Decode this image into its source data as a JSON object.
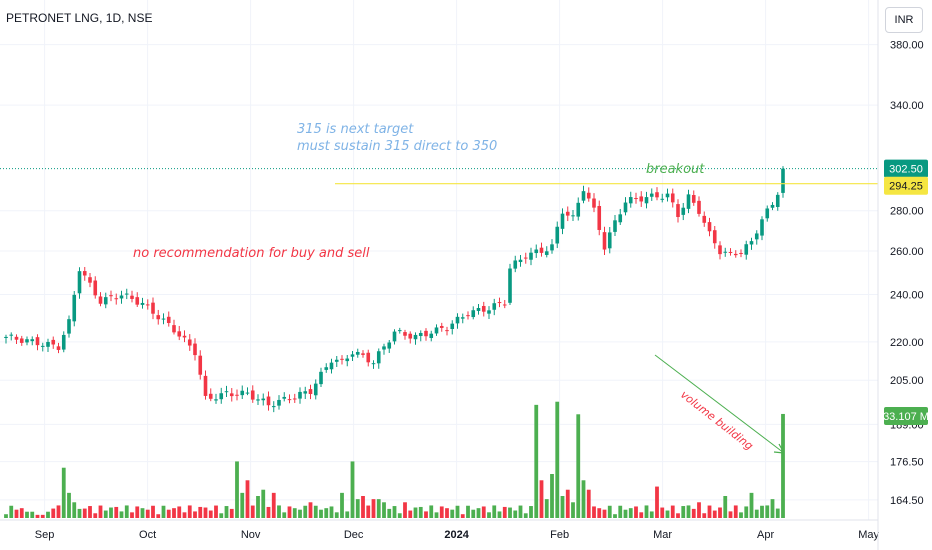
{
  "header": {
    "title": "PETRONET LNG, 1D, NSE",
    "currency": "INR"
  },
  "annotations": {
    "target_line1": "315 is next target",
    "target_line2": "must sustain 315 direct to 350",
    "recommendation": "no recommendation for buy and sell",
    "breakout": "breakout",
    "volume": "volume building"
  },
  "colors": {
    "up": "#089981",
    "down": "#f23645",
    "vol_up": "#4caf50",
    "vol_down": "#f23645",
    "last_price": "#089981",
    "resistance": "#f5e642",
    "arrow": "#4caf50"
  },
  "chart_data": {
    "type": "candlestick",
    "title": "PETRONET LNG, 1D, NSE",
    "y_axis": {
      "scale": "log",
      "range": [
        160,
        405
      ],
      "ticks": [
        "380.00",
        "340.00",
        "280.00",
        "260.00",
        "240.00",
        "220.00",
        "205.00",
        "189.00",
        "176.50",
        "164.50"
      ],
      "tick_values": [
        380,
        340,
        280,
        260,
        240,
        220,
        205,
        189,
        176.5,
        164.5
      ]
    },
    "x_axis": {
      "labels": [
        "Sep",
        "Oct",
        "Nov",
        "Dec",
        "2024",
        "Feb",
        "Mar",
        "Apr",
        "May"
      ],
      "label_month_index": [
        0.2,
        1.2,
        2.2,
        3.2,
        4.2,
        5.2,
        6.2,
        7.2,
        8.2
      ]
    },
    "price_levels": {
      "last": 302.5,
      "last_label": "302.50",
      "resistance": 294.25,
      "resistance_label": "294.25"
    },
    "volume": {
      "last_label": "33.107 M",
      "max_m": 42
    },
    "anchors": [
      [
        0,
        222
      ],
      [
        10,
        218
      ],
      [
        12,
        228
      ],
      [
        14,
        252
      ],
      [
        16,
        244
      ],
      [
        18,
        237
      ],
      [
        22,
        240
      ],
      [
        26,
        236
      ],
      [
        32,
        225
      ],
      [
        36,
        216
      ],
      [
        38,
        198
      ],
      [
        42,
        200
      ],
      [
        46,
        200
      ],
      [
        50,
        196
      ],
      [
        55,
        199
      ],
      [
        58,
        201
      ],
      [
        62,
        213
      ],
      [
        64,
        212
      ],
      [
        66,
        216
      ],
      [
        70,
        212
      ],
      [
        74,
        224
      ],
      [
        78,
        222
      ],
      [
        84,
        226
      ],
      [
        88,
        232
      ],
      [
        92,
        234
      ],
      [
        95,
        237
      ],
      [
        96,
        252
      ],
      [
        99,
        258
      ],
      [
        102,
        260
      ],
      [
        104,
        262
      ],
      [
        106,
        280
      ],
      [
        108,
        276
      ],
      [
        110,
        292
      ],
      [
        112,
        280
      ],
      [
        114,
        262
      ],
      [
        116,
        274
      ],
      [
        118,
        285
      ],
      [
        122,
        287
      ],
      [
        126,
        288
      ],
      [
        128,
        278
      ],
      [
        130,
        287
      ],
      [
        132,
        280
      ],
      [
        134,
        268
      ],
      [
        136,
        260
      ],
      [
        138,
        258
      ],
      [
        140,
        260
      ],
      [
        142,
        264
      ],
      [
        144,
        276
      ],
      [
        146,
        283
      ],
      [
        147,
        290
      ],
      [
        148,
        302.5
      ]
    ],
    "vol_days": [
      [
        4,
        2
      ],
      [
        5,
        2
      ],
      [
        6,
        1
      ],
      [
        7,
        1
      ],
      [
        8,
        2
      ],
      [
        9,
        3
      ],
      [
        10,
        4
      ],
      [
        11,
        16
      ],
      [
        12,
        8
      ],
      [
        13,
        5
      ],
      [
        15,
        3
      ],
      [
        44,
        18
      ],
      [
        45,
        8
      ],
      [
        46,
        12
      ],
      [
        48,
        7
      ],
      [
        49,
        9
      ],
      [
        51,
        8
      ],
      [
        58,
        5
      ],
      [
        64,
        8
      ],
      [
        66,
        18
      ],
      [
        67,
        6
      ],
      [
        68,
        7
      ],
      [
        70,
        6
      ],
      [
        71,
        6
      ],
      [
        72,
        5
      ],
      [
        76,
        5
      ],
      [
        101,
        36
      ],
      [
        102,
        12
      ],
      [
        103,
        6
      ],
      [
        104,
        14
      ],
      [
        105,
        37
      ],
      [
        106,
        7
      ],
      [
        107,
        9
      ],
      [
        108,
        5
      ],
      [
        109,
        33
      ],
      [
        110,
        12
      ],
      [
        111,
        9
      ],
      [
        124,
        10
      ],
      [
        130,
        4
      ],
      [
        132,
        5
      ],
      [
        137,
        7
      ],
      [
        142,
        8
      ],
      [
        145,
        4
      ],
      [
        146,
        6
      ],
      [
        147,
        3
      ],
      [
        148,
        33.107
      ]
    ]
  }
}
